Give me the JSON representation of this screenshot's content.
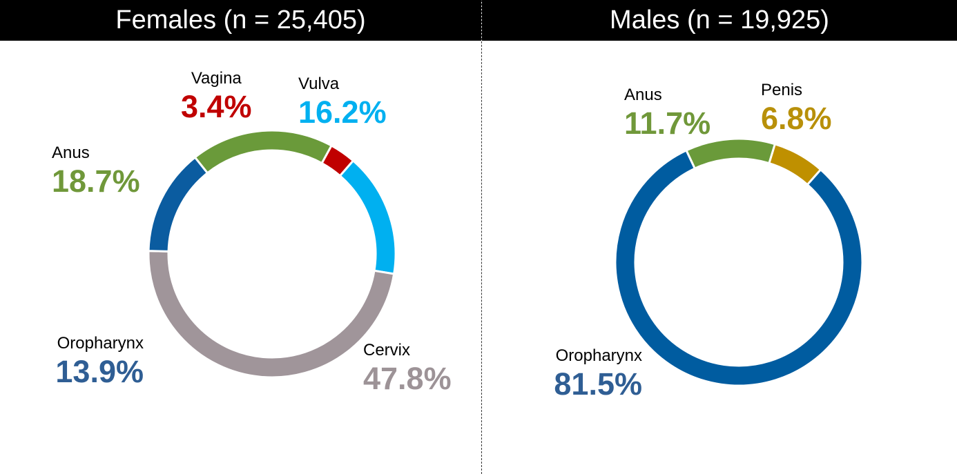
{
  "chart_data": [
    {
      "type": "pie",
      "title": "Females (n = 25,405)",
      "slices": [
        {
          "name": "Vulva",
          "value": 16.2,
          "label": "16.2%",
          "color": "#00B0F0"
        },
        {
          "name": "Cervix",
          "value": 47.8,
          "label": "47.8%",
          "color": "#A0959A"
        },
        {
          "name": "Oropharynx",
          "value": 13.9,
          "label": "13.9%",
          "color": "#0B5CA0"
        },
        {
          "name": "Anus",
          "value": 18.7,
          "label": "18.7%",
          "color": "#6A9A3A"
        },
        {
          "name": "Vagina",
          "value": 3.4,
          "label": "3.4%",
          "color": "#C00000"
        }
      ]
    },
    {
      "type": "pie",
      "title": "Males (n = 19,925)",
      "slices": [
        {
          "name": "Penis",
          "value": 6.8,
          "label": "6.8%",
          "color": "#BF9000"
        },
        {
          "name": "Oropharynx",
          "value": 81.5,
          "label": "81.5%",
          "color": "#005CA0"
        },
        {
          "name": "Anus",
          "value": 11.7,
          "label": "11.7%",
          "color": "#6A9A3A"
        }
      ]
    }
  ],
  "label_colors": {
    "Vulva": "#00B0F0",
    "Cervix": "#9D9397",
    "Oropharynx": "#2F5E94",
    "Anus": "#70983A",
    "Vagina": "#C00000",
    "Penis": "#B8900A"
  }
}
